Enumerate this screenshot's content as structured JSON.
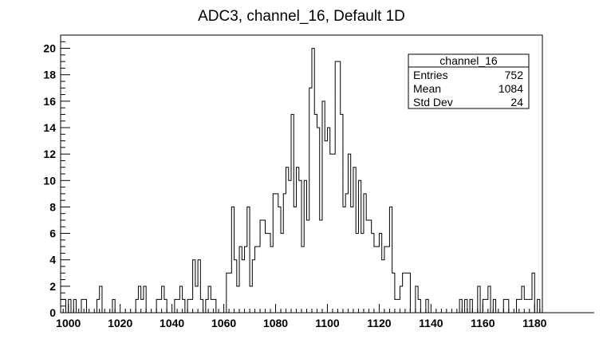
{
  "chart_data": {
    "type": "histogram",
    "title": "ADC3, channel_16, Default 1D",
    "xlabel": "",
    "ylabel": "",
    "xlim": [
      997,
      1183
    ],
    "ylim": [
      0,
      21
    ],
    "bin_width": 1,
    "x_ticks": [
      "1000",
      "1020",
      "1040",
      "1060",
      "1080",
      "1100",
      "1120",
      "1140",
      "1160",
      "1180"
    ],
    "y_ticks": [
      "0",
      "2",
      "4",
      "6",
      "8",
      "10",
      "12",
      "14",
      "16",
      "18",
      "20"
    ],
    "bins": {
      "x_start": 997,
      "counts": [
        1,
        1,
        0,
        1,
        0,
        1,
        0,
        0,
        1,
        1,
        0,
        0,
        0,
        0,
        1,
        2,
        0,
        0,
        0,
        0,
        1,
        0,
        0,
        0,
        0,
        0,
        0,
        0,
        0,
        1,
        2,
        1,
        2,
        0,
        0,
        0,
        0,
        1,
        1,
        2,
        1,
        0,
        0,
        0,
        1,
        1,
        2,
        1,
        0,
        1,
        1,
        4,
        2,
        4,
        1,
        0,
        1,
        2,
        1,
        1,
        0,
        0,
        0,
        0,
        3,
        3,
        8,
        4,
        2,
        5,
        4,
        5,
        8,
        2,
        4,
        5,
        5,
        7,
        7,
        6,
        6,
        5,
        9,
        9,
        8,
        6,
        9,
        11,
        10,
        15,
        8,
        11,
        10,
        5,
        10,
        7,
        17,
        20,
        15,
        14,
        7,
        16,
        13,
        14,
        12,
        12,
        19,
        19,
        15,
        8,
        9,
        12,
        8,
        11,
        6,
        10,
        6,
        9,
        7,
        7,
        6,
        5,
        5,
        6,
        4,
        5,
        5,
        8,
        3,
        1,
        1,
        2,
        3,
        3,
        3,
        0,
        0,
        2,
        1,
        0,
        0,
        1,
        0,
        0,
        0,
        0,
        0,
        0,
        0,
        0,
        0,
        0,
        0,
        0,
        1,
        0,
        1,
        0,
        1,
        0,
        0,
        2,
        0,
        1,
        1,
        2,
        0,
        1,
        0,
        0,
        0,
        1,
        1,
        0,
        0,
        0,
        1,
        1,
        2,
        1,
        1,
        1,
        3,
        0,
        1,
        0,
        0,
        0,
        0,
        0,
        0,
        0,
        0,
        0,
        0,
        0,
        0,
        0,
        0,
        0,
        0,
        0,
        0,
        0,
        0,
        0
      ]
    },
    "stats_box": {
      "title": "channel_16",
      "rows": [
        {
          "label": "Entries",
          "value": "752"
        },
        {
          "label": "Mean",
          "value": "1084"
        },
        {
          "label": "Std Dev",
          "value": "24"
        }
      ]
    },
    "grid": false,
    "legend_position": "top-right"
  }
}
